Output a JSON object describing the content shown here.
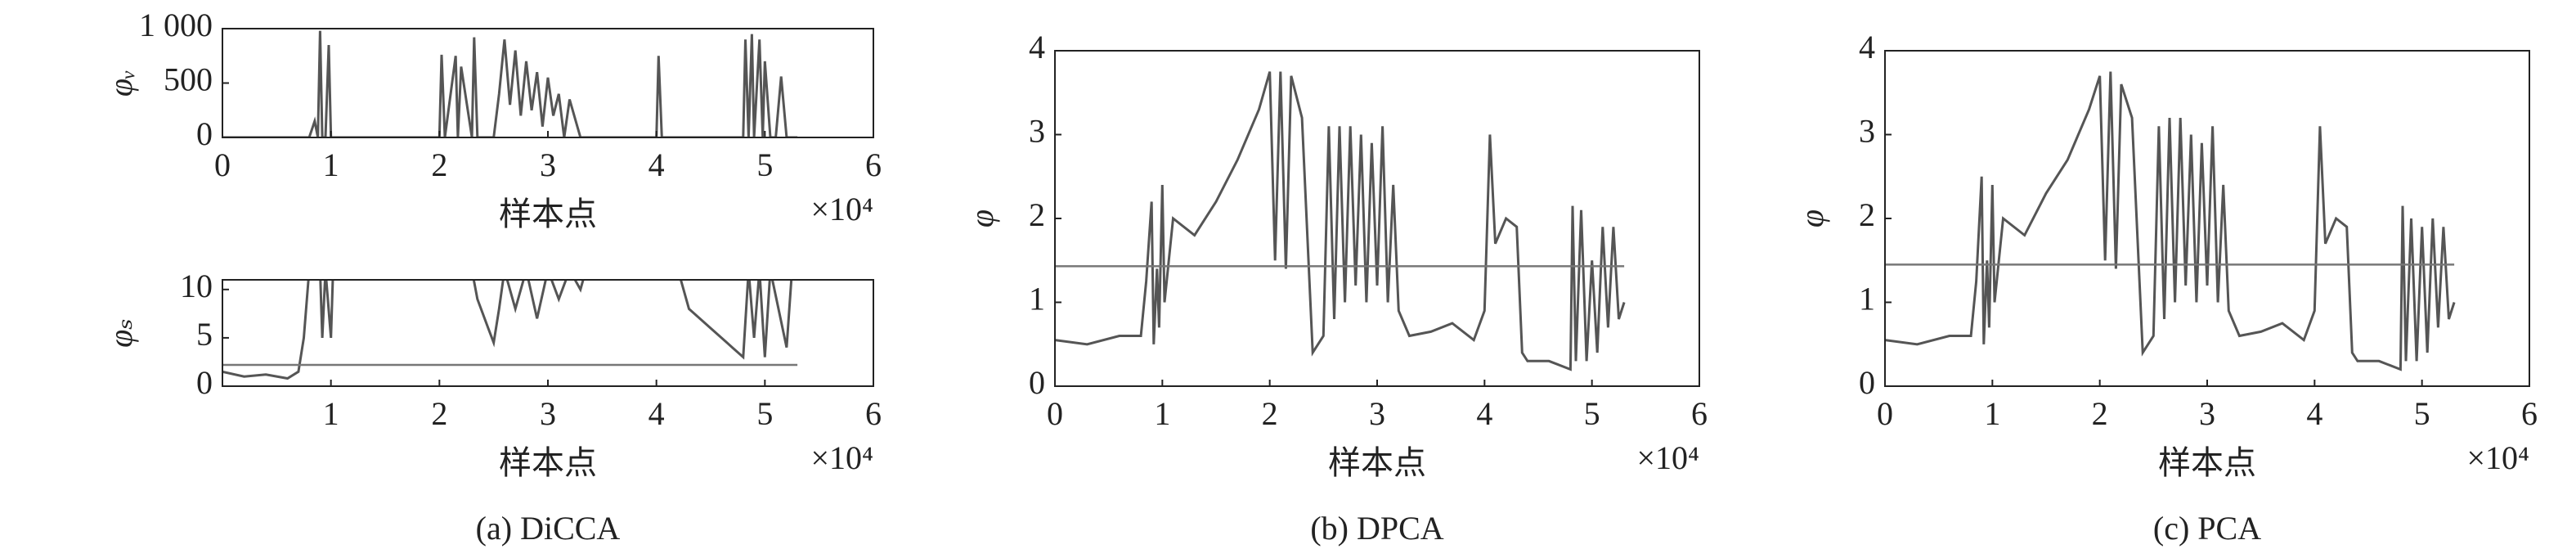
{
  "chart_data": [
    {
      "type": "line",
      "ylabel": "φᵥ",
      "xlabel": "样本点",
      "x_offset_label": "×10⁴",
      "xlim": [
        0,
        6
      ],
      "xticks": [
        0,
        1,
        2,
        3,
        4,
        5,
        6
      ],
      "ylim": [
        0,
        1000
      ],
      "yticks": [
        0,
        500,
        {
          "value": 1000,
          "label": "1 000"
        }
      ],
      "x": [
        0,
        0.8,
        0.85,
        0.88,
        0.9,
        0.92,
        0.95,
        0.98,
        1.0,
        1.02,
        2.0,
        2.02,
        2.05,
        2.15,
        2.17,
        2.2,
        2.3,
        2.32,
        2.35,
        2.5,
        2.55,
        2.6,
        2.65,
        2.7,
        2.75,
        2.8,
        2.85,
        2.9,
        2.95,
        3.0,
        3.05,
        3.1,
        3.15,
        3.2,
        3.3,
        4.0,
        4.02,
        4.05,
        4.8,
        4.82,
        4.85,
        4.88,
        4.9,
        4.95,
        4.98,
        5.0,
        5.05,
        5.1,
        5.15,
        5.2,
        5.3
      ],
      "series": [
        {
          "color": "#555555",
          "values": [
            0,
            0,
            150,
            0,
            980,
            0,
            0,
            850,
            0,
            0,
            0,
            760,
            0,
            750,
            0,
            650,
            0,
            920,
            0,
            0,
            400,
            900,
            300,
            800,
            200,
            700,
            250,
            600,
            100,
            550,
            200,
            400,
            0,
            350,
            0,
            0,
            750,
            0,
            0,
            900,
            0,
            950,
            0,
            900,
            0,
            700,
            0,
            0,
            560,
            0,
            0
          ]
        }
      ]
    },
    {
      "type": "line",
      "ylabel": "φₛ",
      "xlabel": "样本点",
      "x_offset_label": "×10⁴",
      "caption": "(a) DiCCA",
      "xlim": [
        0,
        6
      ],
      "xticks": [
        1,
        2,
        3,
        4,
        5,
        6
      ],
      "ylim": [
        0,
        11
      ],
      "yticks": [
        0,
        5,
        10
      ],
      "x": [
        0,
        0.2,
        0.4,
        0.6,
        0.7,
        0.75,
        0.8,
        0.9,
        0.92,
        0.95,
        1.0,
        1.02,
        2.3,
        2.35,
        2.45,
        2.5,
        2.55,
        2.6,
        2.7,
        2.8,
        2.9,
        3.0,
        3.1,
        3.2,
        3.3,
        3.35,
        4.2,
        4.3,
        4.5,
        4.7,
        4.8,
        4.85,
        4.9,
        4.95,
        5.0,
        5.05,
        5.2,
        5.25,
        5.3
      ],
      "series": [
        {
          "color": "#555555",
          "values": [
            1.5,
            1.0,
            1.2,
            0.8,
            1.5,
            5,
            12,
            12,
            5,
            12,
            5,
            12,
            12,
            9,
            6,
            4.5,
            8,
            12,
            8,
            12,
            7,
            12,
            9,
            12,
            10,
            12,
            12,
            8,
            6,
            4,
            3,
            12,
            5,
            12,
            3,
            12,
            4,
            12,
            12
          ]
        },
        {
          "color": "#777777",
          "x": [
            0,
            5.3
          ],
          "values": [
            2.2,
            2.2
          ]
        }
      ]
    },
    {
      "type": "line",
      "ylabel": "φ",
      "xlabel": "样本点",
      "x_offset_label": "×10⁴",
      "caption": "(b) DPCA",
      "xlim": [
        0,
        6
      ],
      "xticks": [
        0,
        1,
        2,
        3,
        4,
        5,
        6
      ],
      "ylim": [
        0,
        4
      ],
      "yticks": [
        0,
        1,
        2,
        3,
        4
      ],
      "x": [
        0,
        0.3,
        0.6,
        0.8,
        0.85,
        0.9,
        0.92,
        0.95,
        0.97,
        1.0,
        1.02,
        1.1,
        1.3,
        1.5,
        1.7,
        1.9,
        2.0,
        2.05,
        2.1,
        2.15,
        2.2,
        2.3,
        2.4,
        2.5,
        2.55,
        2.6,
        2.65,
        2.7,
        2.75,
        2.8,
        2.85,
        2.9,
        2.95,
        3.0,
        3.05,
        3.1,
        3.15,
        3.2,
        3.3,
        3.5,
        3.7,
        3.9,
        4.0,
        4.05,
        4.1,
        4.2,
        4.3,
        4.35,
        4.4,
        4.6,
        4.8,
        4.82,
        4.85,
        4.9,
        4.95,
        5.0,
        5.05,
        5.1,
        5.15,
        5.2,
        5.25,
        5.3
      ],
      "series": [
        {
          "color": "#555555",
          "values": [
            0.55,
            0.5,
            0.6,
            0.6,
            1.25,
            2.2,
            0.5,
            1.4,
            0.7,
            2.4,
            1.0,
            2.0,
            1.8,
            2.2,
            2.7,
            3.3,
            3.75,
            1.5,
            3.75,
            1.4,
            3.7,
            3.2,
            0.4,
            0.6,
            3.1,
            0.8,
            3.1,
            1.0,
            3.1,
            1.2,
            3.0,
            1.0,
            2.9,
            1.2,
            3.1,
            1.0,
            2.4,
            0.9,
            0.6,
            0.65,
            0.75,
            0.55,
            0.9,
            3.0,
            1.7,
            2.0,
            1.9,
            0.4,
            0.3,
            0.3,
            0.2,
            2.15,
            0.3,
            2.1,
            0.3,
            1.5,
            0.4,
            1.9,
            0.7,
            1.9,
            0.8,
            1.0
          ]
        },
        {
          "color": "#777777",
          "x": [
            0,
            5.3
          ],
          "values": [
            1.43,
            1.43
          ]
        }
      ]
    },
    {
      "type": "line",
      "ylabel": "φ",
      "xlabel": "样本点",
      "x_offset_label": "×10⁴",
      "caption": "(c) PCA",
      "xlim": [
        0,
        6
      ],
      "xticks": [
        0,
        1,
        2,
        3,
        4,
        5,
        6
      ],
      "ylim": [
        0,
        4
      ],
      "yticks": [
        0,
        1,
        2,
        3,
        4
      ],
      "x": [
        0,
        0.3,
        0.6,
        0.8,
        0.85,
        0.9,
        0.92,
        0.95,
        0.97,
        1.0,
        1.02,
        1.1,
        1.3,
        1.5,
        1.7,
        1.9,
        2.0,
        2.05,
        2.1,
        2.15,
        2.2,
        2.3,
        2.4,
        2.5,
        2.55,
        2.6,
        2.65,
        2.7,
        2.75,
        2.8,
        2.85,
        2.9,
        2.95,
        3.0,
        3.05,
        3.1,
        3.15,
        3.2,
        3.3,
        3.5,
        3.7,
        3.9,
        4.0,
        4.05,
        4.1,
        4.2,
        4.3,
        4.35,
        4.4,
        4.6,
        4.8,
        4.82,
        4.85,
        4.9,
        4.95,
        5.0,
        5.05,
        5.1,
        5.15,
        5.2,
        5.25,
        5.3
      ],
      "series": [
        {
          "color": "#555555",
          "values": [
            0.55,
            0.5,
            0.6,
            0.6,
            1.25,
            2.5,
            0.5,
            1.5,
            0.7,
            2.4,
            1.0,
            2.0,
            1.8,
            2.3,
            2.7,
            3.3,
            3.7,
            1.5,
            3.75,
            1.4,
            3.6,
            3.2,
            0.4,
            0.6,
            3.1,
            0.8,
            3.2,
            1.0,
            3.2,
            1.2,
            3.0,
            1.0,
            2.9,
            1.2,
            3.1,
            1.0,
            2.4,
            0.9,
            0.6,
            0.65,
            0.75,
            0.55,
            0.9,
            3.1,
            1.7,
            2.0,
            1.9,
            0.4,
            0.3,
            0.3,
            0.2,
            2.15,
            0.3,
            2.0,
            0.3,
            1.9,
            0.4,
            2.0,
            0.7,
            1.9,
            0.8,
            1.0
          ]
        },
        {
          "color": "#777777",
          "x": [
            0,
            5.3
          ],
          "values": [
            1.45,
            1.45
          ]
        }
      ]
    }
  ]
}
